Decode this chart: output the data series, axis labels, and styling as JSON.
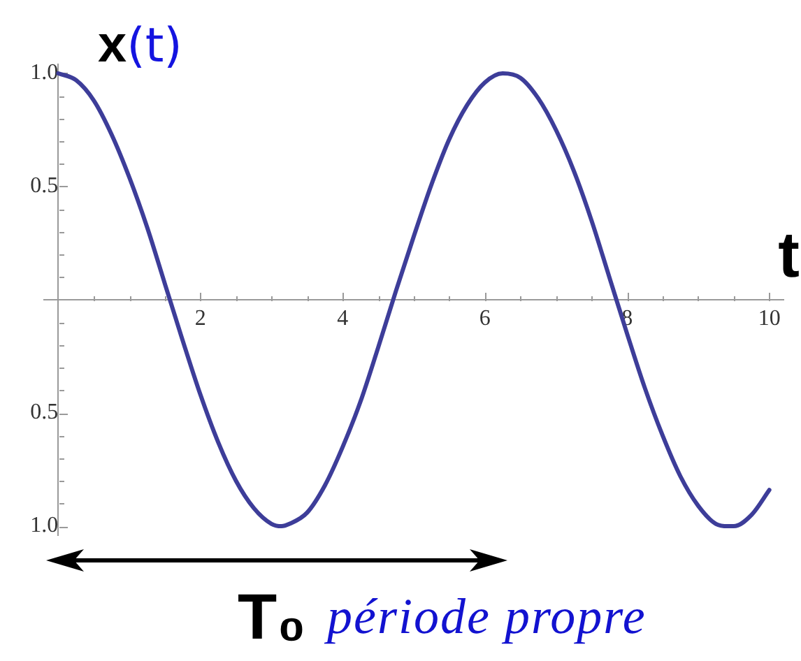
{
  "chart_data": {
    "type": "line",
    "xlabel": "t",
    "ylabel": "x(t)",
    "annotations": [
      "T₀",
      "période propre"
    ],
    "color": "#3d3d99",
    "x": [
      0,
      0.25,
      0.5,
      0.75,
      1,
      1.25,
      1.5,
      1.75,
      2,
      2.25,
      2.5,
      2.75,
      3,
      3.14,
      3.25,
      3.5,
      3.75,
      4,
      4.25,
      4.5,
      4.75,
      5,
      5.25,
      5.5,
      5.75,
      6,
      6.25,
      6.5,
      6.75,
      7,
      7.25,
      7.5,
      7.75,
      8,
      8.25,
      8.5,
      8.75,
      9,
      9.25,
      9.42,
      9.5,
      9.75,
      10
    ],
    "values": [
      1.0,
      0.97,
      0.88,
      0.73,
      0.54,
      0.32,
      0.07,
      -0.18,
      -0.42,
      -0.63,
      -0.8,
      -0.92,
      -0.99,
      -1.0,
      -0.99,
      -0.94,
      -0.82,
      -0.65,
      -0.45,
      -0.21,
      0.04,
      0.28,
      0.51,
      0.71,
      0.86,
      0.96,
      1.0,
      0.98,
      0.89,
      0.75,
      0.57,
      0.35,
      0.1,
      -0.15,
      -0.39,
      -0.6,
      -0.78,
      -0.91,
      -0.99,
      -1.0,
      -1.0,
      -0.95,
      -0.84
    ],
    "xlim": [
      -0.2,
      10.2
    ],
    "ylim": [
      -1.04,
      1.04
    ],
    "xticks": [
      {
        "value": 0.5,
        "label": null
      },
      {
        "value": 1,
        "label": null
      },
      {
        "value": 1.5,
        "label": null
      },
      2,
      {
        "value": 2.5,
        "label": null
      },
      {
        "value": 3,
        "label": null
      },
      {
        "value": 3.5,
        "label": null
      },
      4,
      {
        "value": 4.5,
        "label": null
      },
      {
        "value": 5,
        "label": null
      },
      {
        "value": 5.5,
        "label": null
      },
      6,
      {
        "value": 6.5,
        "label": null
      },
      {
        "value": 7,
        "label": null
      },
      {
        "value": 7.5,
        "label": null
      },
      8,
      {
        "value": 8.5,
        "label": null
      },
      {
        "value": 9,
        "label": null
      },
      {
        "value": 9.5,
        "label": null
      },
      10
    ],
    "yticks": [
      {
        "value": -1,
        "label": "1.0"
      },
      {
        "value": -0.9,
        "label": null
      },
      {
        "value": -0.8,
        "label": null
      },
      {
        "value": -0.7,
        "label": null
      },
      {
        "value": -0.6,
        "label": null
      },
      {
        "value": -0.5,
        "label": "0.5"
      },
      {
        "value": -0.4,
        "label": null
      },
      {
        "value": -0.3,
        "label": null
      },
      {
        "value": -0.2,
        "label": null
      },
      {
        "value": -0.1,
        "label": null
      },
      {
        "value": 0.1,
        "label": null
      },
      {
        "value": 0.2,
        "label": null
      },
      {
        "value": 0.3,
        "label": null
      },
      {
        "value": 0.4,
        "label": null
      },
      0.5,
      {
        "value": 0.6,
        "label": null
      },
      {
        "value": 0.7,
        "label": null
      },
      {
        "value": 0.8,
        "label": null
      },
      {
        "value": 0.9,
        "label": null
      },
      {
        "value": 1,
        "label": "1.0"
      }
    ]
  }
}
